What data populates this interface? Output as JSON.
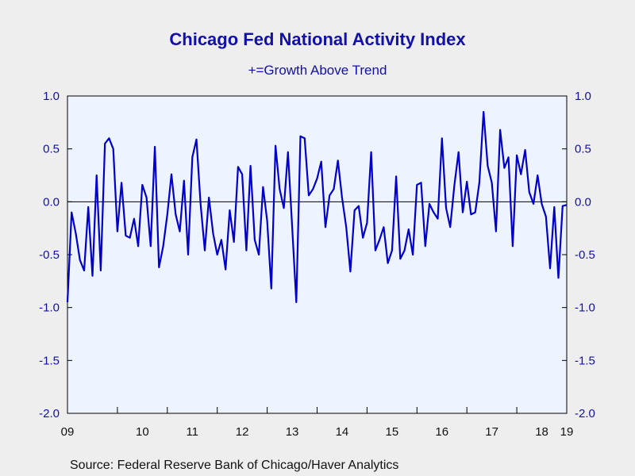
{
  "chart_data": {
    "type": "line",
    "title": "Chicago Fed National Activity Index",
    "subtitle": "+=Growth Above Trend",
    "source": "Source:  Federal Reserve Bank of Chicago/Haver Analytics",
    "ylim": [
      -2.0,
      1.0
    ],
    "yticks": [
      "1.0",
      "0.5",
      "0.0",
      "-0.5",
      "-1.0",
      "-1.5",
      "-2.0"
    ],
    "ytick_values": [
      1.0,
      0.5,
      0.0,
      -0.5,
      -1.0,
      -1.5,
      -2.0
    ],
    "xticks": [
      "09",
      "10",
      "11",
      "12",
      "13",
      "14",
      "15",
      "16",
      "17",
      "18",
      "19"
    ],
    "zero_line": true,
    "grid": false,
    "series": [
      {
        "color": "#0000c8",
        "start": "2009-01",
        "frequency": "monthly",
        "values": [
          -0.95,
          -0.1,
          -0.3,
          -0.55,
          -0.65,
          -0.05,
          -0.7,
          0.25,
          -0.65,
          0.55,
          0.6,
          0.5,
          -0.28,
          0.18,
          -0.32,
          -0.34,
          -0.16,
          -0.42,
          0.16,
          0.04,
          -0.42,
          0.52,
          -0.62,
          -0.42,
          -0.12,
          0.26,
          -0.12,
          -0.28,
          0.2,
          -0.5,
          0.42,
          0.59,
          -0.02,
          -0.46,
          0.04,
          -0.3,
          -0.5,
          -0.36,
          -0.64,
          -0.08,
          -0.38,
          0.33,
          0.26,
          -0.46,
          0.34,
          -0.36,
          -0.5,
          0.14,
          -0.18,
          -0.82,
          0.53,
          0.12,
          -0.06,
          0.47,
          -0.24,
          -0.95,
          0.62,
          0.6,
          0.06,
          0.12,
          0.22,
          0.38,
          -0.24,
          0.06,
          0.12,
          0.39,
          0.04,
          -0.24,
          -0.66,
          -0.08,
          -0.04,
          -0.34,
          -0.2,
          0.47,
          -0.46,
          -0.36,
          -0.24,
          -0.58,
          -0.46,
          0.24,
          -0.54,
          -0.46,
          -0.26,
          -0.5,
          0.16,
          0.18,
          -0.42,
          -0.02,
          -0.1,
          -0.16,
          0.6,
          -0.06,
          -0.24,
          0.16,
          0.47,
          -0.1,
          0.19,
          -0.12,
          -0.1,
          0.18,
          0.85,
          0.34,
          0.18,
          -0.28,
          0.68,
          0.32,
          0.42,
          -0.42,
          0.44,
          0.26,
          0.49,
          0.09,
          -0.02,
          0.25,
          -0.02,
          -0.14,
          -0.63,
          -0.05,
          -0.72,
          -0.04,
          -0.03
        ]
      }
    ]
  }
}
